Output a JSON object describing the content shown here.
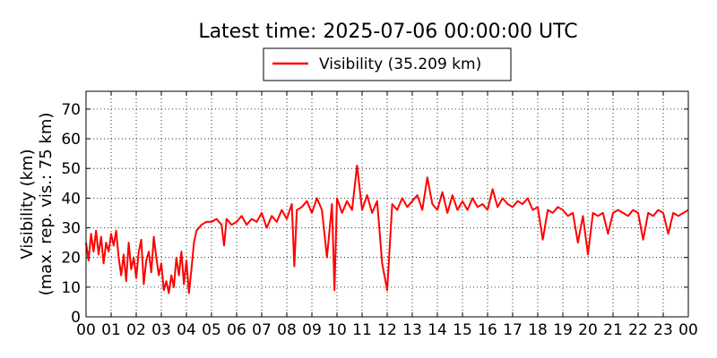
{
  "chart_data": {
    "type": "line",
    "title": "Latest time: 2025-07-06 00:00:00 UTC",
    "ylabel_line1": "Visibility (km)",
    "ylabel_line2": "(max. rep. vis.: 75 km)",
    "xlabel": "",
    "xlim": [
      0,
      24
    ],
    "ylim": [
      0,
      76
    ],
    "grid": true,
    "legend_position": "top-center",
    "x_ticks": [
      "00",
      "01",
      "02",
      "03",
      "04",
      "05",
      "06",
      "07",
      "08",
      "09",
      "10",
      "11",
      "12",
      "13",
      "14",
      "15",
      "16",
      "17",
      "18",
      "19",
      "20",
      "21",
      "22",
      "23",
      "00"
    ],
    "y_ticks": [
      0,
      10,
      20,
      30,
      40,
      50,
      60,
      70
    ],
    "series": [
      {
        "name": "Visibility (35.209 km)",
        "color": "#ff0000",
        "x": [
          0,
          0.1,
          0.2,
          0.3,
          0.4,
          0.5,
          0.6,
          0.7,
          0.8,
          0.9,
          1.0,
          1.1,
          1.2,
          1.3,
          1.4,
          1.5,
          1.6,
          1.7,
          1.8,
          1.9,
          2.0,
          2.1,
          2.2,
          2.3,
          2.4,
          2.5,
          2.6,
          2.7,
          2.8,
          2.9,
          3.0,
          3.1,
          3.2,
          3.3,
          3.4,
          3.5,
          3.6,
          3.7,
          3.8,
          3.9,
          4.0,
          4.1,
          4.2,
          4.3,
          4.4,
          4.5,
          4.6,
          4.8,
          5.0,
          5.2,
          5.4,
          5.5,
          5.6,
          5.8,
          6.0,
          6.2,
          6.4,
          6.6,
          6.8,
          7.0,
          7.2,
          7.4,
          7.6,
          7.8,
          8.0,
          8.2,
          8.3,
          8.4,
          8.6,
          8.8,
          9.0,
          9.2,
          9.4,
          9.6,
          9.8,
          9.9,
          10.0,
          10.2,
          10.4,
          10.6,
          10.8,
          11.0,
          11.2,
          11.4,
          11.6,
          11.8,
          12.0,
          12.2,
          12.4,
          12.6,
          12.8,
          13.0,
          13.2,
          13.4,
          13.6,
          13.8,
          14.0,
          14.2,
          14.4,
          14.6,
          14.8,
          15.0,
          15.2,
          15.4,
          15.6,
          15.8,
          16.0,
          16.2,
          16.4,
          16.6,
          16.8,
          17.0,
          17.2,
          17.4,
          17.6,
          17.8,
          18.0,
          18.2,
          18.4,
          18.6,
          18.8,
          19.0,
          19.2,
          19.4,
          19.6,
          19.8,
          20.0,
          20.2,
          20.4,
          20.6,
          20.8,
          21.0,
          21.2,
          21.4,
          21.6,
          21.8,
          22.0,
          22.2,
          22.4,
          22.6,
          22.8,
          23.0,
          23.2,
          23.4,
          23.6,
          23.8,
          24.0
        ],
        "y": [
          25,
          19,
          28,
          22,
          29,
          21,
          27,
          18,
          25,
          22,
          28,
          24,
          29,
          20,
          14,
          21,
          12,
          25,
          16,
          20,
          13,
          22,
          26,
          11,
          19,
          22,
          15,
          27,
          20,
          14,
          18,
          9,
          12,
          8,
          14,
          10,
          20,
          14,
          22,
          11,
          19,
          8,
          16,
          25,
          29,
          30,
          31,
          32,
          32,
          33,
          31,
          24,
          33,
          31,
          32,
          34,
          31,
          33,
          32,
          35,
          30,
          34,
          32,
          36,
          33,
          38,
          17,
          36,
          37,
          39,
          35,
          40,
          36,
          20,
          38,
          9,
          40,
          35,
          39,
          36,
          51,
          36,
          41,
          35,
          39,
          18,
          9,
          38,
          36,
          40,
          37,
          39,
          41,
          36,
          47,
          38,
          36,
          42,
          35,
          41,
          36,
          39,
          36,
          40,
          37,
          38,
          36,
          43,
          37,
          40,
          38,
          37,
          39,
          38,
          40,
          36,
          37,
          26,
          36,
          35,
          37,
          36,
          34,
          35,
          25,
          34,
          21,
          35,
          34,
          35,
          28,
          35,
          36,
          35,
          34,
          36,
          35,
          26,
          35,
          34,
          36,
          35,
          28,
          35,
          34,
          35,
          36
        ]
      }
    ]
  }
}
